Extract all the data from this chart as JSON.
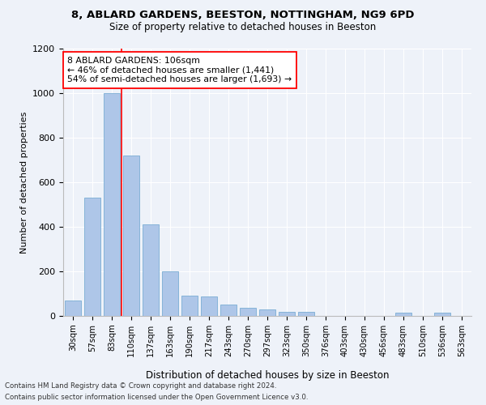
{
  "title_line1": "8, ABLARD GARDENS, BEESTON, NOTTINGHAM, NG9 6PD",
  "title_line2": "Size of property relative to detached houses in Beeston",
  "xlabel": "Distribution of detached houses by size in Beeston",
  "ylabel": "Number of detached properties",
  "categories": [
    "30sqm",
    "57sqm",
    "83sqm",
    "110sqm",
    "137sqm",
    "163sqm",
    "190sqm",
    "217sqm",
    "243sqm",
    "270sqm",
    "297sqm",
    "323sqm",
    "350sqm",
    "376sqm",
    "403sqm",
    "430sqm",
    "456sqm",
    "483sqm",
    "510sqm",
    "536sqm",
    "563sqm"
  ],
  "values": [
    70,
    530,
    1000,
    720,
    410,
    200,
    90,
    88,
    50,
    37,
    30,
    18,
    18,
    0,
    0,
    0,
    0,
    13,
    0,
    13,
    0
  ],
  "bar_color": "#aec6e8",
  "bar_edgecolor": "#7aadd4",
  "property_bin_index": 3,
  "redline_label": "8 ABLARD GARDENS: 106sqm",
  "annotation_line1": "← 46% of detached houses are smaller (1,441)",
  "annotation_line2": "54% of semi-detached houses are larger (1,693) →",
  "ylim": [
    0,
    1200
  ],
  "yticks": [
    0,
    200,
    400,
    600,
    800,
    1000,
    1200
  ],
  "footer_line1": "Contains HM Land Registry data © Crown copyright and database right 2024.",
  "footer_line2": "Contains public sector information licensed under the Open Government Licence v3.0.",
  "bg_color": "#eef2f9",
  "plot_bg_color": "#eef2f9"
}
